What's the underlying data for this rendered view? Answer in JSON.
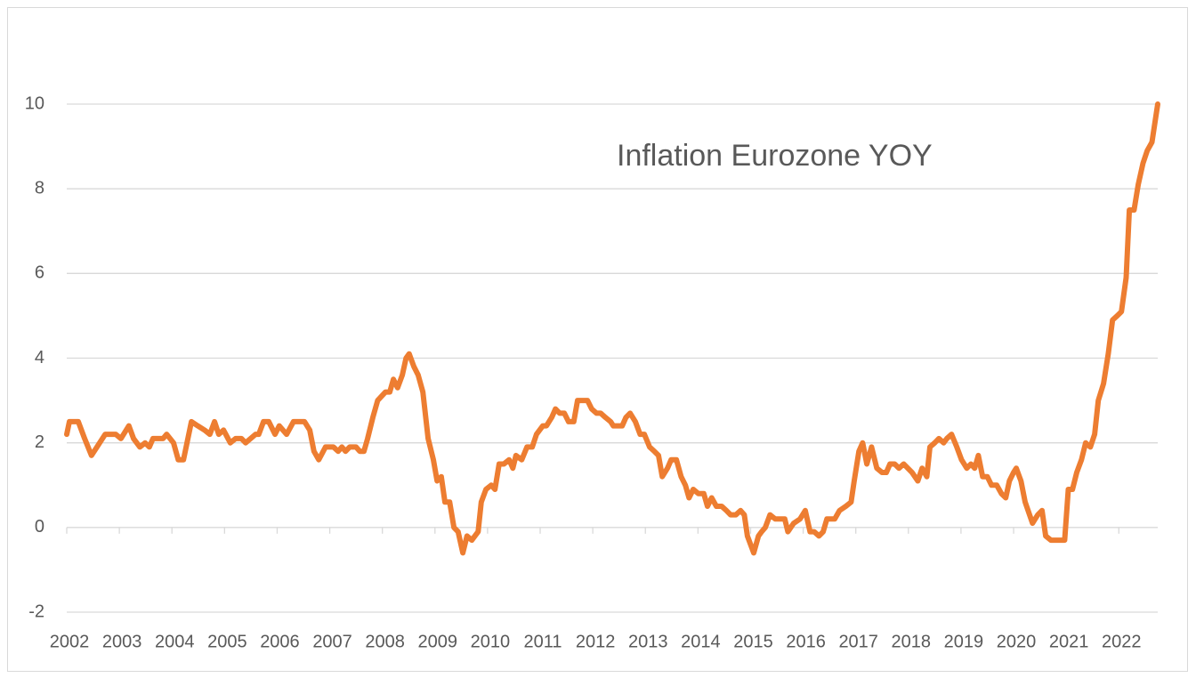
{
  "chart_data": {
    "type": "line",
    "title": "Inflation Eurozone YOY",
    "x": [
      2002.0,
      2002.05,
      2002.22,
      2002.34,
      2002.47,
      2002.73,
      2002.93,
      2003.03,
      2003.18,
      2003.27,
      2003.39,
      2003.49,
      2003.57,
      2003.64,
      2003.83,
      2003.9,
      2004.03,
      2004.12,
      2004.22,
      2004.37,
      2004.49,
      2004.62,
      2004.72,
      2004.81,
      2004.89,
      2004.98,
      2005.11,
      2005.21,
      2005.32,
      2005.4,
      2005.59,
      2005.65,
      2005.74,
      2005.84,
      2005.96,
      2006.04,
      2006.18,
      2006.31,
      2006.52,
      2006.62,
      2006.7,
      2006.79,
      2006.92,
      2007.07,
      2007.16,
      2007.23,
      2007.3,
      2007.38,
      2007.5,
      2007.57,
      2007.65,
      2007.72,
      2007.82,
      2007.91,
      2008.06,
      2008.14,
      2008.21,
      2008.29,
      2008.38,
      2008.45,
      2008.51,
      2008.6,
      2008.68,
      2008.77,
      2008.87,
      2008.97,
      2009.04,
      2009.12,
      2009.19,
      2009.28,
      2009.36,
      2009.44,
      2009.53,
      2009.61,
      2009.7,
      2009.82,
      2009.88,
      2009.97,
      2010.07,
      2010.14,
      2010.22,
      2010.31,
      2010.41,
      2010.48,
      2010.54,
      2010.65,
      2010.75,
      2010.85,
      2010.93,
      2011.05,
      2011.12,
      2011.22,
      2011.29,
      2011.37,
      2011.46,
      2011.54,
      2011.64,
      2011.71,
      2011.9,
      2011.98,
      2012.07,
      2012.15,
      2012.24,
      2012.34,
      2012.39,
      2012.56,
      2012.63,
      2012.71,
      2012.81,
      2012.9,
      2012.98,
      2013.08,
      2013.17,
      2013.25,
      2013.32,
      2013.42,
      2013.49,
      2013.59,
      2013.68,
      2013.76,
      2013.83,
      2013.91,
      2014.01,
      2014.11,
      2014.18,
      2014.26,
      2014.35,
      2014.45,
      2014.54,
      2014.62,
      2014.72,
      2014.81,
      2014.88,
      2014.94,
      2015.06,
      2015.15,
      2015.21,
      2015.28,
      2015.37,
      2015.47,
      2015.59,
      2015.65,
      2015.71,
      2015.82,
      2015.94,
      2016.04,
      2016.13,
      2016.21,
      2016.3,
      2016.38,
      2016.45,
      2016.53,
      2016.6,
      2016.69,
      2016.81,
      2016.91,
      2016.97,
      2017.06,
      2017.13,
      2017.21,
      2017.3,
      2017.4,
      2017.5,
      2017.58,
      2017.65,
      2017.74,
      2017.82,
      2017.91,
      2017.99,
      2018.07,
      2018.18,
      2018.26,
      2018.35,
      2018.41,
      2018.5,
      2018.58,
      2018.67,
      2018.73,
      2018.82,
      2018.92,
      2019.01,
      2019.11,
      2019.19,
      2019.26,
      2019.33,
      2019.41,
      2019.5,
      2019.58,
      2019.68,
      2019.77,
      2019.85,
      2019.92,
      2020.0,
      2020.05,
      2020.14,
      2020.22,
      2020.36,
      2020.46,
      2020.54,
      2020.61,
      2020.71,
      2020.97,
      2021.04,
      2021.12,
      2021.2,
      2021.29,
      2021.37,
      2021.46,
      2021.54,
      2021.61,
      2021.71,
      2021.8,
      2021.88,
      2021.97,
      2022.05,
      2022.14,
      2022.2,
      2022.29,
      2022.37,
      2022.46,
      2022.54,
      2022.63,
      2022.74
    ],
    "series": [
      {
        "color": "#ed7d31",
        "values": [
          2.2,
          2.5,
          2.5,
          2.1,
          1.7,
          2.2,
          2.2,
          2.1,
          2.4,
          2.1,
          1.9,
          2.0,
          1.9,
          2.1,
          2.1,
          2.2,
          2.0,
          1.6,
          1.6,
          2.5,
          2.4,
          2.3,
          2.2,
          2.5,
          2.2,
          2.3,
          2.0,
          2.1,
          2.1,
          2.0,
          2.2,
          2.2,
          2.5,
          2.5,
          2.2,
          2.4,
          2.2,
          2.5,
          2.5,
          2.3,
          1.8,
          1.6,
          1.9,
          1.9,
          1.8,
          1.9,
          1.8,
          1.9,
          1.9,
          1.8,
          1.8,
          2.1,
          2.6,
          3.0,
          3.2,
          3.2,
          3.5,
          3.3,
          3.6,
          4.0,
          4.1,
          3.8,
          3.6,
          3.2,
          2.1,
          1.6,
          1.1,
          1.2,
          0.6,
          0.6,
          0.0,
          -0.1,
          -0.6,
          -0.2,
          -0.3,
          -0.1,
          0.6,
          0.9,
          1.0,
          0.9,
          1.5,
          1.5,
          1.6,
          1.4,
          1.7,
          1.6,
          1.9,
          1.9,
          2.2,
          2.4,
          2.4,
          2.6,
          2.8,
          2.7,
          2.7,
          2.5,
          2.5,
          3.0,
          3.0,
          2.8,
          2.7,
          2.7,
          2.6,
          2.5,
          2.4,
          2.4,
          2.6,
          2.7,
          2.5,
          2.2,
          2.2,
          1.9,
          1.8,
          1.7,
          1.2,
          1.4,
          1.6,
          1.6,
          1.2,
          1.0,
          0.7,
          0.9,
          0.8,
          0.8,
          0.5,
          0.7,
          0.5,
          0.5,
          0.4,
          0.3,
          0.3,
          0.4,
          0.3,
          -0.2,
          -0.6,
          -0.2,
          -0.1,
          0.0,
          0.3,
          0.2,
          0.2,
          0.2,
          -0.1,
          0.1,
          0.2,
          0.4,
          -0.1,
          -0.1,
          -0.2,
          -0.1,
          0.2,
          0.2,
          0.2,
          0.4,
          0.5,
          0.6,
          1.1,
          1.8,
          2.0,
          1.5,
          1.9,
          1.4,
          1.3,
          1.3,
          1.5,
          1.5,
          1.4,
          1.5,
          1.4,
          1.3,
          1.1,
          1.4,
          1.2,
          1.9,
          2.0,
          2.1,
          2.0,
          2.1,
          2.2,
          1.9,
          1.6,
          1.4,
          1.5,
          1.4,
          1.7,
          1.2,
          1.2,
          1.0,
          1.0,
          0.8,
          0.7,
          1.1,
          1.3,
          1.4,
          1.1,
          0.6,
          0.1,
          0.3,
          0.4,
          -0.2,
          -0.3,
          -0.3,
          0.9,
          0.9,
          1.3,
          1.6,
          2.0,
          1.9,
          2.2,
          3.0,
          3.4,
          4.1,
          4.9,
          5.0,
          5.1,
          5.9,
          7.5,
          7.5,
          8.1,
          8.6,
          8.9,
          9.1,
          10.0
        ]
      }
    ],
    "xlim": [
      2002,
      2022.74
    ],
    "xticks": [
      2002,
      2003,
      2004,
      2005,
      2006,
      2007,
      2008,
      2009,
      2010,
      2011,
      2012,
      2013,
      2014,
      2015,
      2016,
      2017,
      2018,
      2019,
      2020,
      2021,
      2022
    ],
    "ylim": [
      -2,
      10
    ],
    "yticks": [
      -2,
      0,
      2,
      4,
      6,
      8,
      10
    ],
    "grid": true
  }
}
